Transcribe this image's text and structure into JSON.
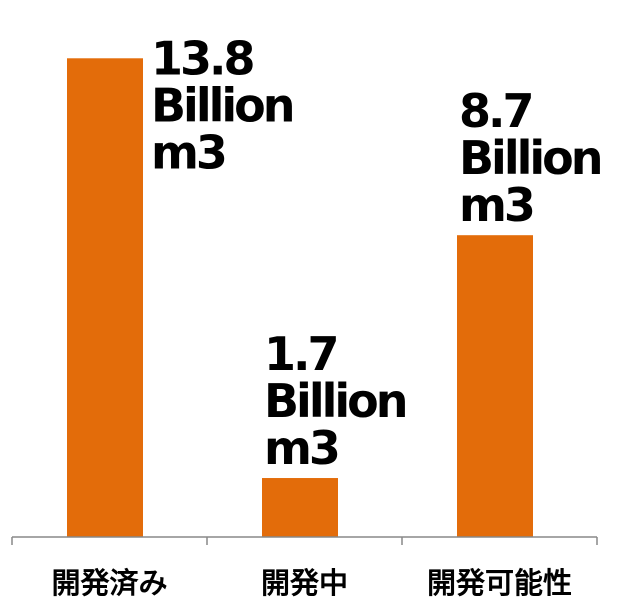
{
  "chart_data": {
    "type": "bar",
    "categories": [
      "開発済み",
      "開発中",
      "開発可能性"
    ],
    "values": [
      13.8,
      1.7,
      8.7
    ],
    "data_labels": [
      [
        "13.8",
        "Billion",
        "m3"
      ],
      [
        "1.7",
        "Billion",
        "m3"
      ],
      [
        "8.7",
        "Billion",
        "m3"
      ]
    ],
    "title": "",
    "xlabel": "",
    "ylabel": "",
    "ylim": [
      0,
      14.5
    ],
    "grid": false,
    "legend": "none",
    "colors": {
      "bar": "#E36C0A",
      "axis": "#888888",
      "text": "#000000"
    }
  }
}
